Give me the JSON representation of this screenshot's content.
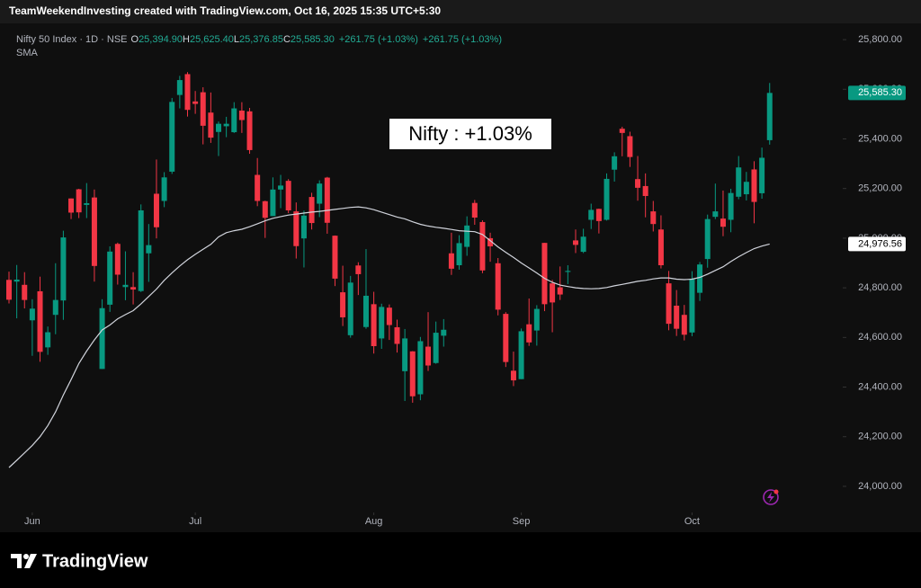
{
  "header": {
    "attribution": "TeamWeekendInvesting created with TradingView.com, Oct 16, 2025 15:35 UTC+5:30",
    "symbol": "Nifty 50 Index · 1D · NSE",
    "ohlc": [
      {
        "key": "O",
        "value": "25,394.90"
      },
      {
        "key": "H",
        "value": "25,625.40"
      },
      {
        "key": "L",
        "value": "25,376.85"
      },
      {
        "key": "C",
        "value": "25,585.30"
      }
    ],
    "changes": [
      "+261.75 (+1.03%)",
      "+261.75 (+1.03%)"
    ]
  },
  "chart_data": {
    "type": "candlestick",
    "annotation": "Nifty : +1.03%",
    "up_color": "#089981",
    "down_color": "#f23645",
    "open": [
      24832,
      24825,
      24812,
      24669,
      24786,
      24560,
      24691,
      24749,
      25160,
      25197,
      25134,
      25164,
      24473,
      24732,
      24977,
      24803,
      24803,
      24787,
      24939,
      25179,
      25150,
      25268,
      25577,
      25661,
      25551,
      25588,
      25506,
      25428,
      25451,
      25427,
      25514,
      25511,
      25255,
      25149,
      25089,
      25196,
      25231,
      25108,
      24999,
      25166,
      25139,
      25244,
      25010,
      24782,
      24609,
      24890,
      24642,
      24734,
      24596,
      24720,
      24641,
      24464,
      24544,
      24371,
      24563,
      24497,
      24607,
      24939,
      24891,
      24965,
      25142,
      25065,
      25000,
      24899,
      24695,
      24466,
      24432,
      24653,
      24628,
      24981,
      24818,
      24802,
      24864,
      24991,
      24945,
      25074,
      25118,
      25074,
      25276,
      25441,
      25411,
      25238,
      25210,
      25108,
      25035,
      24818,
      24728,
      24691,
      24620,
      24780,
      24916,
      25086,
      25079,
      25074,
      25167,
      25177,
      25277,
      25181,
      25394.9
    ],
    "high": [
      24865,
      24892,
      24863,
      24754,
      24845,
      24644,
      24899,
      25030,
      25160,
      25199,
      25222,
      25196,
      24754,
      24967,
      24982,
      24947,
      24863,
      25136,
      25057,
      25317,
      25266,
      25565,
      25654,
      25669,
      25593,
      25608,
      25587,
      25470,
      25489,
      25548,
      25548,
      25525,
      25323,
      25151,
      25245,
      25255,
      25238,
      25144,
      25111,
      25183,
      25233,
      25247,
      25011,
      24889,
      24848,
      24903,
      24956,
      24784,
      24736,
      24733,
      24672,
      24634,
      24545,
      24602,
      24702,
      24664,
      24674,
      25022,
      25012,
      25088,
      25154,
      25072,
      25022,
      24920,
      24702,
      24543,
      24636,
      24757,
      24730,
      24981,
      24832,
      24886,
      24891,
      25035,
      25038,
      25139,
      25119,
      25261,
      25346,
      25449,
      25429,
      25331,
      25261,
      25150,
      25092,
      24868,
      24791,
      24731,
      24867,
      24904,
      25095,
      25220,
      25192,
      25199,
      25331,
      25267,
      25310,
      25365,
      25625.4
    ],
    "low": [
      24737,
      24677,
      24717,
      24526,
      24502,
      24530,
      24613,
      24671,
      25077,
      25081,
      25081,
      24825,
      24473,
      24703,
      24813,
      24750,
      24733,
      24783,
      24824,
      24999,
      25125,
      25259,
      25523,
      25490,
      25501,
      25378,
      25384,
      25331,
      25407,
      25424,
      25424,
      25340,
      25129,
      25001,
      25089,
      25121,
      25101,
      24918,
      24882,
      25035,
      25085,
      25018,
      24807,
      24646,
      24599,
      24771,
      24635,
      24535,
      24554,
      24590,
      24539,
      24344,
      24337,
      24347,
      24465,
      24494,
      24563,
      24852,
      24873,
      24929,
      25054,
      24859,
      24905,
      24689,
      24481,
      24404,
      24432,
      24566,
      24567,
      24706,
      24621,
      24751,
      24815,
      24940,
      24940,
      25037,
      25019,
      25071,
      25228,
      25330,
      25287,
      25151,
      25084,
      25027,
      24878,
      24629,
      24606,
      24588,
      24605,
      24747,
      24881,
      25077,
      25008,
      25024,
      25157,
      25152,
      25060,
      25159,
      25376.85
    ],
    "close": [
      24752,
      24833,
      24751,
      24716,
      24542,
      24621,
      24751,
      25003,
      25103,
      25104,
      25141,
      24888,
      24718,
      24946,
      24853,
      24812,
      24793,
      25112,
      24972,
      25044,
      25245,
      25549,
      25637,
      25517,
      25541,
      25453,
      25405,
      25461,
      25461,
      25523,
      25476,
      25355,
      25150,
      25082,
      25196,
      25212,
      25112,
      24968,
      25091,
      25061,
      25220,
      25062,
      24837,
      24681,
      24821,
      24855,
      24768,
      24565,
      24723,
      24650,
      24574,
      24596,
      24363,
      24585,
      24487,
      24619,
      24631,
      24877,
      24980,
      25051,
      25083,
      24870,
      24967,
      24712,
      24501,
      24427,
      24625,
      24580,
      24715,
      24734,
      24741,
      24773,
      24868,
      24973,
      25006,
      25114,
      25069,
      25239,
      25330,
      25424,
      25327,
      25203,
      25170,
      25057,
      24891,
      24655,
      24635,
      24611,
      24836,
      24894,
      25077,
      25108,
      25046,
      25182,
      25285,
      25227,
      25146,
      25324,
      25585.3
    ],
    "sma": {
      "name": "SMA",
      "color": "#d1d4dc",
      "values": [
        24076,
        24105,
        24135,
        24165,
        24200,
        24245,
        24300,
        24368,
        24430,
        24495,
        24545,
        24590,
        24630,
        24650,
        24675,
        24692,
        24708,
        24735,
        24765,
        24795,
        24830,
        24860,
        24888,
        24913,
        24935,
        24955,
        24975,
        25005,
        25022,
        25030,
        25036,
        25046,
        25058,
        25070,
        25080,
        25087,
        25093,
        25097,
        25101,
        25105,
        25108,
        25112,
        25116,
        25120,
        25124,
        25126,
        25122,
        25115,
        25105,
        25095,
        25085,
        25078,
        25066,
        25056,
        25049,
        25044,
        25040,
        25035,
        25030,
        25028,
        25026,
        25015,
        24990,
        24965,
        24943,
        24922,
        24900,
        24880,
        24860,
        24838,
        24822,
        24811,
        24805,
        24800,
        24797,
        24796,
        24797,
        24801,
        24808,
        24814,
        24820,
        24826,
        24830,
        24836,
        24840,
        24840,
        24835,
        24833,
        24835,
        24842,
        24855,
        24870,
        24885,
        24906,
        24925,
        24942,
        24958,
        24968,
        24976.56
      ]
    },
    "last_close_label": "25,585.30",
    "sma_label": "24,976.56",
    "ylim": [
      23902,
      25851
    ],
    "yticks": [
      {
        "value": 24000,
        "label": "24,000.00"
      },
      {
        "value": 24200,
        "label": "24,200.00"
      },
      {
        "value": 24400,
        "label": "24,400.00"
      },
      {
        "value": 24600,
        "label": "24,600.00"
      },
      {
        "value": 24800,
        "label": "24,800.00"
      },
      {
        "value": 25000,
        "label": "25,000.00"
      },
      {
        "value": 25200,
        "label": "25,200.00"
      },
      {
        "value": 25400,
        "label": "25,400.00"
      },
      {
        "value": 25600,
        "label": "25,600.00"
      },
      {
        "value": 25800,
        "label": "25,800.00"
      }
    ],
    "xticks": [
      {
        "value": 3,
        "label": "Jun"
      },
      {
        "value": 24,
        "label": "Jul"
      },
      {
        "value": 47,
        "label": "Aug"
      },
      {
        "value": 66,
        "label": "Sep"
      },
      {
        "value": 88,
        "label": "Oct"
      }
    ]
  },
  "footer": {
    "brand": "TradingView"
  }
}
